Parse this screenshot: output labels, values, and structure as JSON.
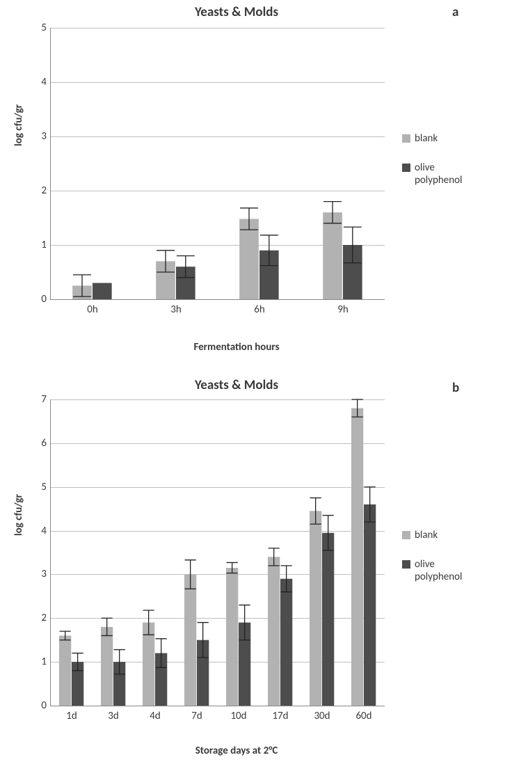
{
  "global": {
    "background_color": "#ffffff",
    "grid_color": "#bfbfbf",
    "axis_color": "#888888",
    "text_color": "#3a3a3a",
    "font_family": "Calibri, Arial, sans-serif"
  },
  "legend": {
    "items": [
      {
        "label": "blank",
        "color": "#b2b2b2"
      },
      {
        "label": "olive\npolyphenol",
        "color": "#4d4d4d"
      }
    ]
  },
  "chart_a": {
    "panel_label": "a",
    "type": "grouped-bar",
    "title": "Yeasts & Molds",
    "title_fontsize": 19,
    "x_axis_label": "Fermentation hours",
    "y_axis_label": "log cfu/gr",
    "label_fontsize": 15,
    "categories": [
      "0h",
      "3h",
      "6h",
      "9h"
    ],
    "ylim": [
      0,
      5
    ],
    "ytick_step": 1,
    "bar_group_width": 0.48,
    "series": [
      {
        "name": "blank",
        "color": "#b2b2b2",
        "values": [
          0.25,
          0.7,
          1.48,
          1.6
        ],
        "error": [
          0.2,
          0.2,
          0.2,
          0.2
        ]
      },
      {
        "name": "olive polyphenol",
        "color": "#4d4d4d",
        "values": [
          0.3,
          0.6,
          0.9,
          1.0
        ],
        "error": [
          0.0,
          0.2,
          0.28,
          0.33
        ]
      }
    ],
    "error_bar_color": "#222222"
  },
  "chart_b": {
    "panel_label": "b",
    "type": "grouped-bar",
    "title": "Yeasts & Molds",
    "title_fontsize": 19,
    "x_axis_label": "Storage days at 2°C",
    "y_axis_label": "log cfu/gr",
    "label_fontsize": 15,
    "categories": [
      "1d",
      "3d",
      "4d",
      "7d",
      "10d",
      "17d",
      "30d",
      "60d"
    ],
    "ylim": [
      0,
      7
    ],
    "ytick_step": 1,
    "bar_group_width": 0.6,
    "series": [
      {
        "name": "blank",
        "color": "#b2b2b2",
        "values": [
          1.6,
          1.8,
          1.9,
          3.0,
          3.15,
          3.4,
          4.45,
          6.8
        ],
        "error": [
          0.1,
          0.2,
          0.28,
          0.33,
          0.12,
          0.2,
          0.3,
          0.2
        ]
      },
      {
        "name": "olive polyphenol",
        "color": "#4d4d4d",
        "values": [
          1.0,
          1.0,
          1.2,
          1.5,
          1.9,
          2.9,
          3.95,
          4.6
        ],
        "error": [
          0.2,
          0.28,
          0.33,
          0.4,
          0.4,
          0.3,
          0.4,
          0.4
        ]
      }
    ],
    "error_bar_color": "#222222"
  }
}
